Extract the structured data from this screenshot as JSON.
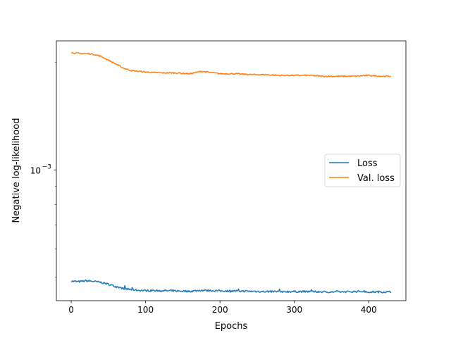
{
  "chart_data": {
    "type": "line",
    "title": "",
    "xlabel": "Epochs",
    "ylabel": "Negative log-likelihood",
    "xlim": [
      -20,
      450
    ],
    "ylim": [
      0.00043,
      0.0023
    ],
    "yscale": "log",
    "x_ticks": [
      0,
      100,
      200,
      300,
      400
    ],
    "x_tick_labels": [
      "0",
      "100",
      "200",
      "300",
      "400"
    ],
    "y_ticks": [
      0.001
    ],
    "y_tick_label_base": "10",
    "y_tick_label_exponent": "−3",
    "grid": false,
    "legend_position": "center-right",
    "series": [
      {
        "name": "Loss",
        "color": "#1f77b4",
        "x": [
          0,
          10,
          20,
          30,
          40,
          50,
          60,
          70,
          80,
          90,
          100,
          120,
          140,
          160,
          175,
          200,
          220,
          240,
          260,
          280,
          300,
          320,
          340,
          360,
          380,
          390,
          400,
          420,
          430
        ],
        "y": [
          0.000488,
          0.000486,
          0.000489,
          0.000487,
          0.000484,
          0.000478,
          0.000471,
          0.000465,
          0.000462,
          0.00046,
          0.000459,
          0.000459,
          0.000458,
          0.000457,
          0.00046,
          0.000458,
          0.000458,
          0.000457,
          0.000456,
          0.000456,
          0.000456,
          0.000456,
          0.000455,
          0.000455,
          0.000456,
          0.000457,
          0.000455,
          0.000455,
          0.000455
        ]
      },
      {
        "name": "Val. loss",
        "color": "#ff7f0e",
        "x": [
          0,
          10,
          20,
          30,
          40,
          50,
          60,
          70,
          80,
          90,
          100,
          120,
          140,
          160,
          175,
          200,
          220,
          240,
          260,
          280,
          300,
          320,
          340,
          360,
          380,
          400,
          420,
          430
        ],
        "y": [
          0.00213,
          0.00212,
          0.00212,
          0.00211,
          0.00208,
          0.00203,
          0.00198,
          0.00193,
          0.0019,
          0.00189,
          0.00188,
          0.00187,
          0.00187,
          0.00186,
          0.00189,
          0.00186,
          0.00186,
          0.00185,
          0.00185,
          0.00184,
          0.00184,
          0.00184,
          0.00183,
          0.00183,
          0.00183,
          0.00184,
          0.00183,
          0.00183
        ]
      }
    ]
  }
}
